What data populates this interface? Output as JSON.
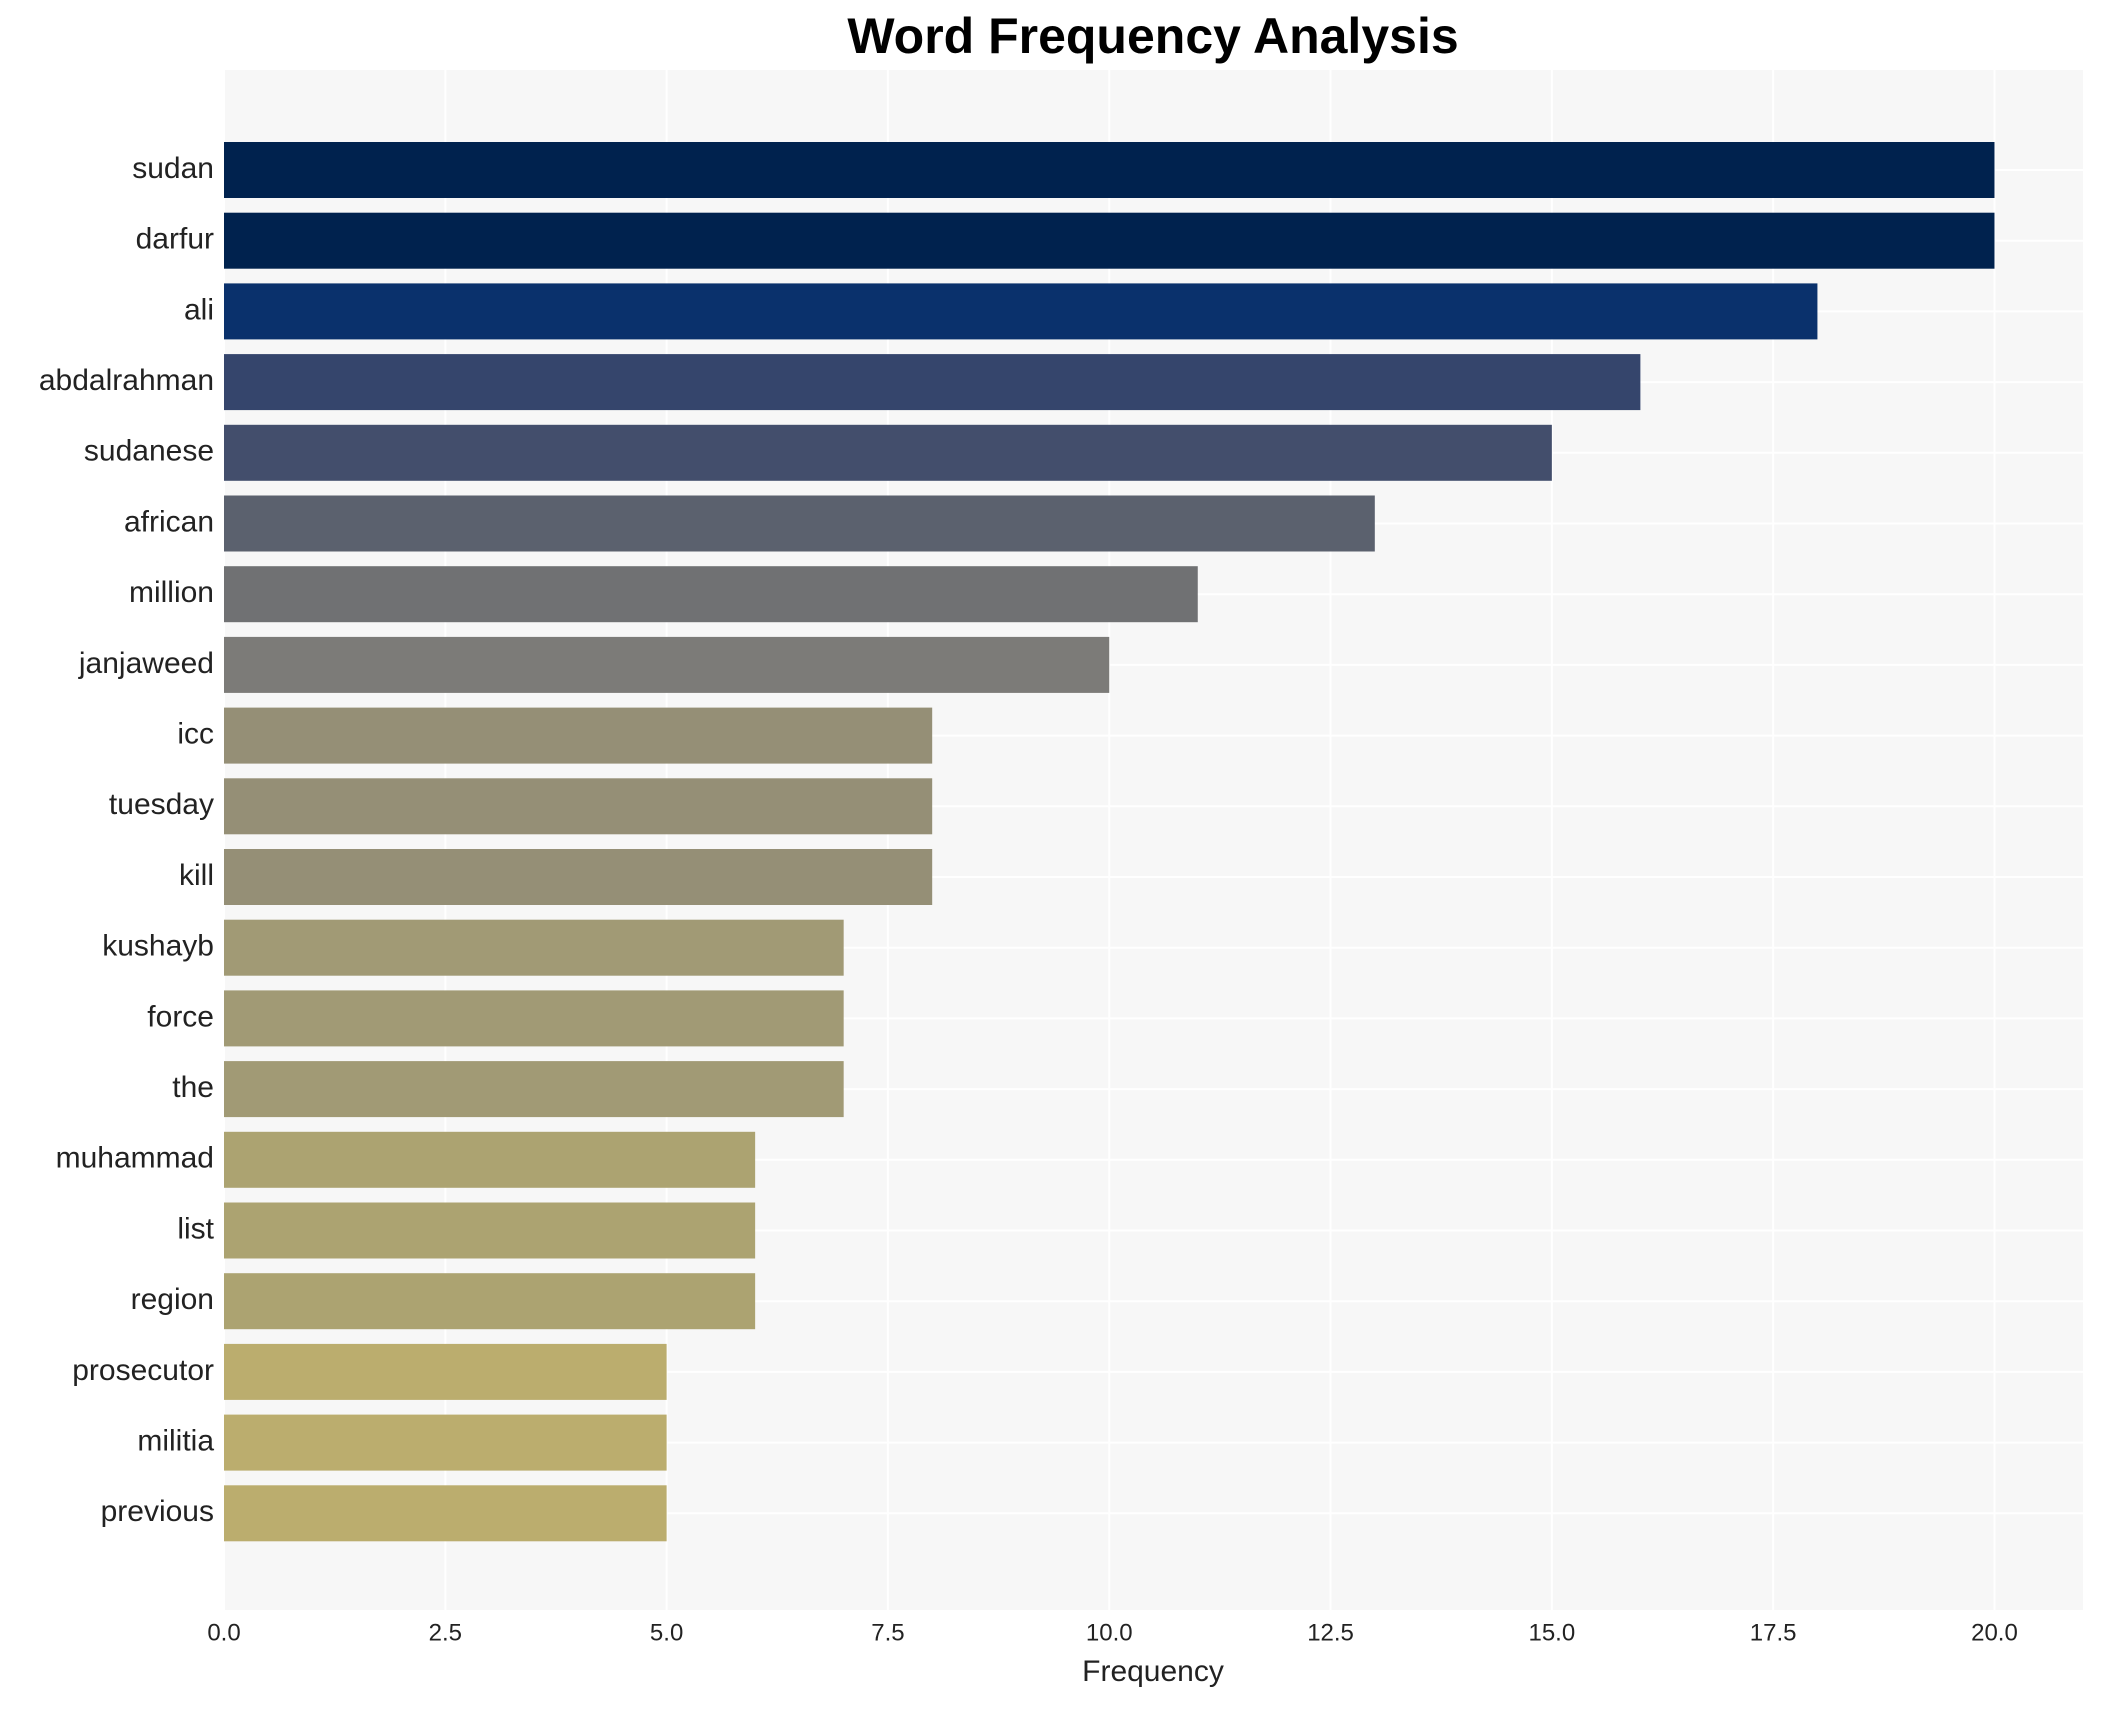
{
  "chart_data": {
    "type": "barh",
    "title": "Word Frequency Analysis",
    "x_label": "Frequency",
    "categories": [
      "sudan",
      "darfur",
      "ali",
      "abdalrahman",
      "sudanese",
      "african",
      "million",
      "janjaweed",
      "icc",
      "tuesday",
      "kill",
      "kushayb",
      "force",
      "the",
      "muhammad",
      "list",
      "region",
      "prosecutor",
      "militia",
      "previous"
    ],
    "values": [
      20,
      20,
      18,
      16,
      15,
      13,
      11,
      10,
      8,
      8,
      8,
      7,
      7,
      7,
      6,
      6,
      6,
      5,
      5,
      5
    ],
    "colors": [
      "#00224e",
      "#00224e",
      "#0a316c",
      "#35456c",
      "#434e6c",
      "#5b616e",
      "#707173",
      "#7c7b78",
      "#958f76",
      "#958f76",
      "#958f76",
      "#a19a75",
      "#a19a75",
      "#a19a75",
      "#aca371",
      "#aca371",
      "#aca371",
      "#bbad6e",
      "#bbad6e",
      "#bbad6e"
    ],
    "xlim": [
      0,
      21
    ],
    "xticks": [
      {
        "value": 0,
        "label": "0.0"
      },
      2.5,
      {
        "value": 5,
        "label": "5.0"
      },
      7.5,
      {
        "value": 10,
        "label": "10.0"
      },
      12.5,
      {
        "value": 15,
        "label": "15.0"
      },
      17.5,
      {
        "value": 20,
        "label": "20.0"
      }
    ],
    "grid": true
  }
}
